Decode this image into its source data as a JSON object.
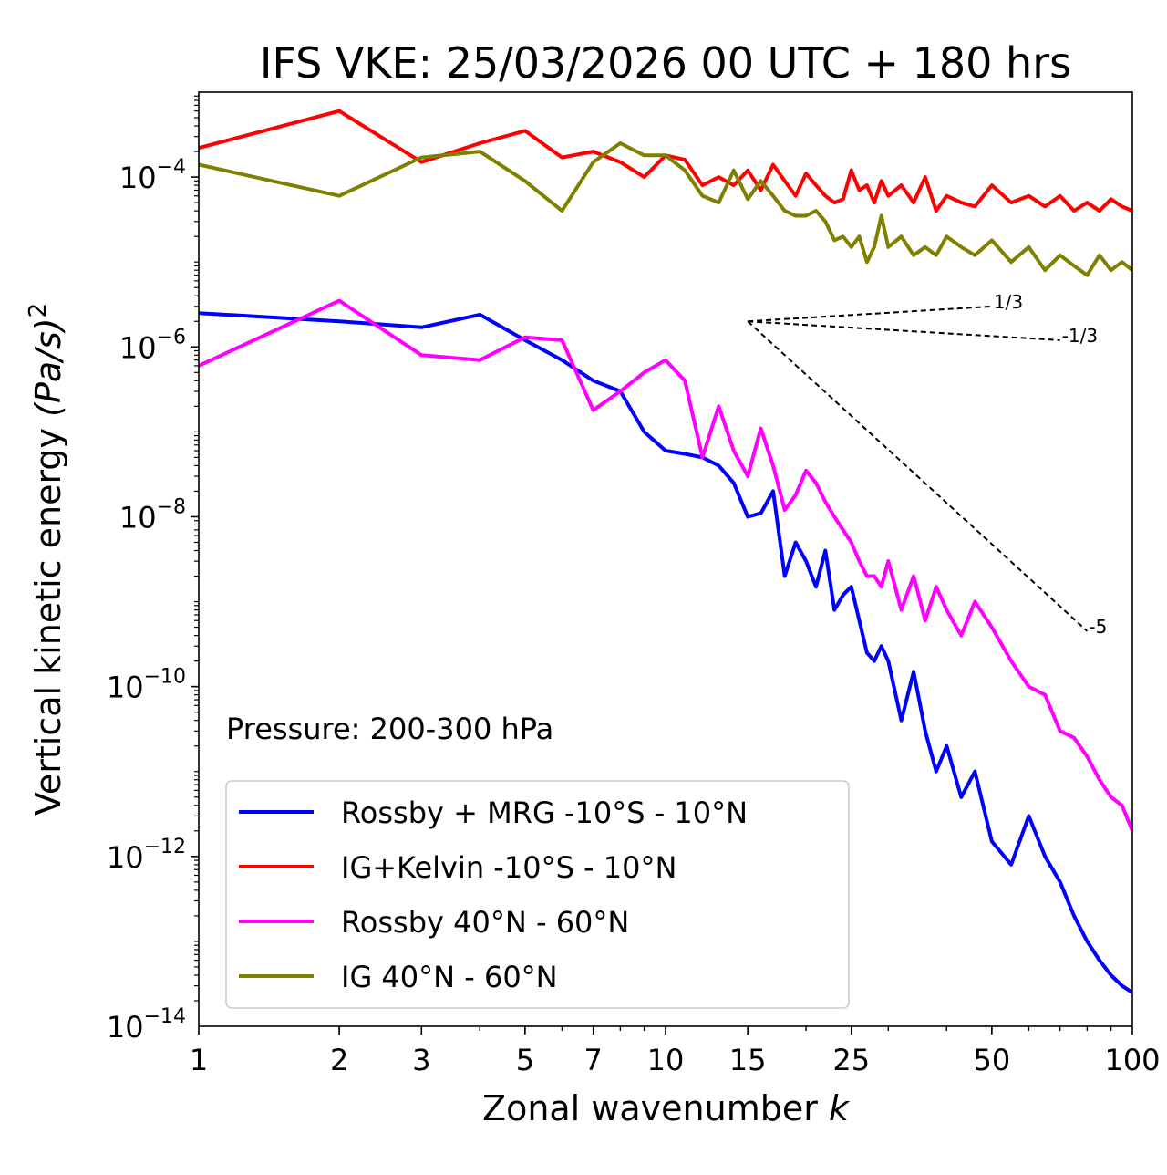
{
  "chart_data": {
    "type": "line",
    "title": "IFS VKE: 25/03/2026 00 UTC + 180 hrs",
    "xlabel": "Zonal wavenumber",
    "xlabel_var": "k",
    "ylabel": "Vertical kinetic energy",
    "ylabel_unit": "(Pa/s)",
    "ylabel_unit_exp": "2",
    "xscale": "log",
    "yscale": "log",
    "xlim": [
      1,
      100
    ],
    "ylim": [
      1e-14,
      0.001
    ],
    "xticks": [
      1,
      2,
      3,
      5,
      7,
      10,
      15,
      25,
      50,
      100
    ],
    "xtick_labels": [
      "1",
      "2",
      "3",
      "5",
      "7",
      "10",
      "15",
      "25",
      "50",
      "100"
    ],
    "yticks": [
      1e-14,
      1e-12,
      1e-10,
      1e-08,
      1e-06,
      0.0001
    ],
    "ytick_base": "10",
    "ytick_exps": [
      "−14",
      "−12",
      "−10",
      "−8",
      "−6",
      "−4"
    ],
    "annotation": "Pressure: 200-300 hPa",
    "legend_location": "lower-left",
    "slope_lines": [
      {
        "label": "1/3",
        "x0": 15,
        "y0": 2e-06,
        "x1": 50,
        "y1": 3e-06
      },
      {
        "label": "-1/3",
        "x0": 15,
        "y0": 2e-06,
        "x1": 70,
        "y1": 1.2e-06
      },
      {
        "label": "-5",
        "x0": 15,
        "y0": 2e-06,
        "x1": 80,
        "y1": 4.5e-10
      }
    ],
    "series": [
      {
        "name": "Rossby + MRG -10°S - 10°N",
        "color": "#0000ff",
        "x": [
          1,
          2,
          3,
          4,
          5,
          6,
          7,
          8,
          9,
          10,
          11,
          12,
          13,
          14,
          15,
          16,
          17,
          18,
          19,
          20,
          21,
          22,
          23,
          24,
          25,
          26,
          27,
          28,
          29,
          30,
          32,
          34,
          36,
          38,
          40,
          43,
          46,
          50,
          55,
          60,
          65,
          70,
          75,
          80,
          85,
          90,
          95,
          100
        ],
        "y": [
          2.5e-06,
          2e-06,
          1.7e-06,
          2.4e-06,
          1.2e-06,
          7e-07,
          4e-07,
          3e-07,
          1e-07,
          6e-08,
          5.5e-08,
          5e-08,
          4e-08,
          2.5e-08,
          1e-08,
          1.1e-08,
          2e-08,
          2e-09,
          5e-09,
          3e-09,
          1.5e-09,
          4e-09,
          8e-10,
          1.2e-09,
          1.5e-09,
          6e-10,
          2.5e-10,
          2e-10,
          3e-10,
          2e-10,
          4e-11,
          1.5e-10,
          3e-11,
          1e-11,
          2e-11,
          5e-12,
          1e-11,
          1.5e-12,
          8e-13,
          3e-12,
          1e-12,
          5e-13,
          2e-13,
          1e-13,
          6e-14,
          4e-14,
          3e-14,
          2.5e-14
        ]
      },
      {
        "name": "IG+Kelvin -10°S - 10°N",
        "color": "#ff0000",
        "x": [
          1,
          2,
          3,
          4,
          5,
          6,
          7,
          8,
          9,
          10,
          11,
          12,
          13,
          14,
          15,
          16,
          17,
          18,
          19,
          20,
          21,
          22,
          23,
          24,
          25,
          26,
          27,
          28,
          29,
          30,
          32,
          34,
          36,
          38,
          40,
          43,
          46,
          50,
          55,
          60,
          65,
          70,
          75,
          80,
          85,
          90,
          95,
          100
        ],
        "y": [
          0.00022,
          0.0006,
          0.00015,
          0.00025,
          0.00035,
          0.00017,
          0.0002,
          0.00015,
          0.0001,
          0.00018,
          0.00016,
          8e-05,
          0.0001,
          8e-05,
          0.00012,
          7e-05,
          0.00014,
          9e-05,
          6e-05,
          0.00011,
          8e-05,
          6e-05,
          5e-05,
          5.5e-05,
          0.00012,
          7e-05,
          8e-05,
          5e-05,
          9e-05,
          6e-05,
          8e-05,
          5e-05,
          0.0001,
          4e-05,
          6e-05,
          5e-05,
          4.5e-05,
          8e-05,
          5e-05,
          6e-05,
          4.5e-05,
          6e-05,
          4e-05,
          5e-05,
          4e-05,
          5.5e-05,
          4.5e-05,
          4e-05
        ]
      },
      {
        "name": "Rossby 40°N - 60°N",
        "color": "#ff00ff",
        "x": [
          1,
          2,
          3,
          4,
          5,
          6,
          7,
          8,
          9,
          10,
          11,
          12,
          13,
          14,
          15,
          16,
          17,
          18,
          19,
          20,
          21,
          22,
          23,
          24,
          25,
          26,
          27,
          28,
          29,
          30,
          32,
          34,
          36,
          38,
          40,
          43,
          46,
          50,
          55,
          60,
          65,
          70,
          75,
          80,
          85,
          90,
          95,
          100
        ],
        "y": [
          6e-07,
          3.5e-06,
          8e-07,
          7e-07,
          1.3e-06,
          1.2e-06,
          1.8e-07,
          3e-07,
          5e-07,
          7e-07,
          4e-07,
          5e-08,
          2e-07,
          6e-08,
          3e-08,
          1.1e-07,
          4e-08,
          1.2e-08,
          1.8e-08,
          3.5e-08,
          2.5e-08,
          1.5e-08,
          1e-08,
          7e-09,
          5e-09,
          3e-09,
          2e-09,
          2e-09,
          1.5e-09,
          3e-09,
          8e-10,
          2e-09,
          6e-10,
          1.5e-09,
          8e-10,
          4e-10,
          1e-09,
          5e-10,
          2e-10,
          1e-10,
          8e-11,
          3e-11,
          2.5e-11,
          1.5e-11,
          8e-12,
          5e-12,
          4e-12,
          2e-12
        ]
      },
      {
        "name": "IG 40°N - 60°N",
        "color": "#808000",
        "x": [
          1,
          2,
          3,
          4,
          5,
          6,
          7,
          8,
          9,
          10,
          11,
          12,
          13,
          14,
          15,
          16,
          17,
          18,
          19,
          20,
          21,
          22,
          23,
          24,
          25,
          26,
          27,
          28,
          29,
          30,
          32,
          34,
          36,
          38,
          40,
          43,
          46,
          50,
          55,
          60,
          65,
          70,
          75,
          80,
          85,
          90,
          95,
          100
        ],
        "y": [
          0.00014,
          6e-05,
          0.00017,
          0.0002,
          9e-05,
          4e-05,
          0.00015,
          0.00025,
          0.00018,
          0.00018,
          0.00012,
          6e-05,
          5e-05,
          0.00012,
          5.5e-05,
          9e-05,
          6e-05,
          4e-05,
          3.5e-05,
          3.5e-05,
          4e-05,
          3e-05,
          1.8e-05,
          2e-05,
          1.5e-05,
          2e-05,
          1e-05,
          1.5e-05,
          3.5e-05,
          1.5e-05,
          2e-05,
          1.2e-05,
          1.5e-05,
          1.2e-05,
          2e-05,
          1.5e-05,
          1.2e-05,
          1.8e-05,
          1e-05,
          1.5e-05,
          8e-06,
          1.2e-05,
          9e-06,
          7e-06,
          1.2e-05,
          8e-06,
          1e-05,
          8e-06
        ]
      }
    ]
  }
}
